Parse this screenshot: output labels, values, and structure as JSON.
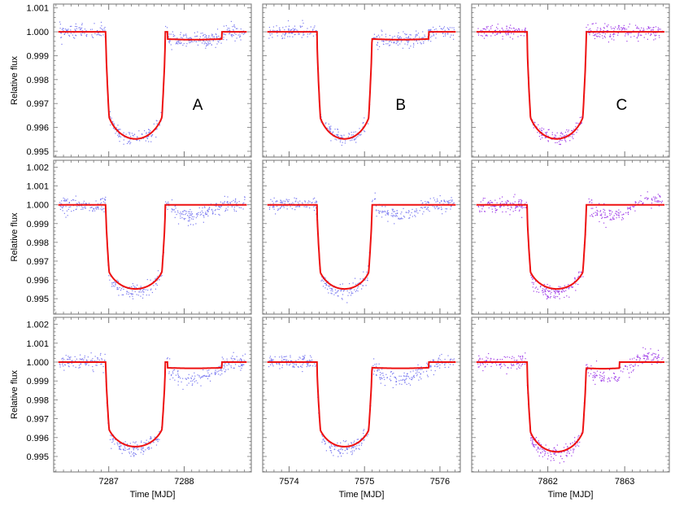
{
  "chart_data": {
    "type": "scatter",
    "grid": false,
    "ylabel": "Relative flux",
    "xlabel": "Time [MJD]",
    "colors": {
      "observed_blue": "#7b7bf0",
      "observed_purple": "#a040e8",
      "model": "#ee1111",
      "frame": "#888888"
    },
    "columns": [
      {
        "label": "A",
        "label_pos": [
          7288.18,
          0.99697
        ],
        "xlim": [
          7286.27,
          7288.89
        ],
        "xticks": [
          7287,
          7288
        ]
      },
      {
        "label": "B",
        "label_pos": [
          7575.48,
          0.99697
        ],
        "xlim": [
          7573.65,
          7576.27
        ],
        "xticks": [
          7574,
          7575,
          7576
        ]
      },
      {
        "label": "C",
        "label_pos": [
          7862.96,
          0.99697
        ],
        "xlim": [
          7861.01,
          7863.58
        ],
        "xticks": [
          7862,
          7863
        ]
      }
    ],
    "rows": [
      {
        "ylim": [
          0.99476,
          1.00116
        ],
        "yticks": [
          "1.001",
          "1.000",
          "0.999",
          "0.998",
          "0.997",
          "0.996",
          "0.995"
        ]
      },
      {
        "ylim": [
          0.99418,
          1.00237
        ],
        "yticks": [
          "1.002",
          "1.001",
          "1.000",
          "0.999",
          "0.998",
          "0.997",
          "0.996",
          "0.995"
        ]
      },
      {
        "ylim": [
          0.99418,
          1.00237
        ],
        "yticks": [
          "1.002",
          "1.001",
          "1.000",
          "0.999",
          "0.998",
          "0.997",
          "0.996",
          "0.995"
        ]
      }
    ],
    "panels": [
      {
        "row": 0,
        "col": 0,
        "color": "observed_blue",
        "model": {
          "t_ingress": 7286.96,
          "t_egress": 7287.75,
          "min_flux": 0.99552,
          "post_level": 0.9997,
          "post_end": 7288.5,
          "egress_bump": true
        }
      },
      {
        "row": 0,
        "col": 1,
        "color": "observed_blue",
        "model": {
          "t_ingress": 7574.37,
          "t_egress": 7575.1,
          "min_flux": 0.99552,
          "post_level": 0.9997,
          "post_end": 7575.85,
          "egress_bump": false
        }
      },
      {
        "row": 0,
        "col": 2,
        "color": "observed_purple",
        "model": {
          "t_ingress": 7861.73,
          "t_egress": 7862.5,
          "min_flux": 0.99552,
          "post_level": 1.0,
          "post_end": 7862.5,
          "egress_bump": false
        }
      },
      {
        "row": 1,
        "col": 0,
        "color": "observed_blue",
        "model": {
          "t_ingress": 7286.96,
          "t_egress": 7287.75,
          "min_flux": 0.99552,
          "post_level": 1.0,
          "post_end": 7287.75,
          "egress_bump": false
        }
      },
      {
        "row": 1,
        "col": 1,
        "color": "observed_blue",
        "model": {
          "t_ingress": 7574.37,
          "t_egress": 7575.1,
          "min_flux": 0.99552,
          "post_level": 1.0,
          "post_end": 7575.1,
          "egress_bump": false
        }
      },
      {
        "row": 1,
        "col": 2,
        "color": "observed_purple",
        "model": {
          "t_ingress": 7861.73,
          "t_egress": 7862.5,
          "min_flux": 0.99552,
          "post_level": 1.0,
          "post_end": 7862.5,
          "egress_bump": false
        }
      },
      {
        "row": 2,
        "col": 0,
        "color": "observed_blue",
        "model": {
          "t_ingress": 7286.96,
          "t_egress": 7287.75,
          "min_flux": 0.99552,
          "post_level": 0.9997,
          "post_end": 7288.5,
          "egress_bump": true
        }
      },
      {
        "row": 2,
        "col": 1,
        "color": "observed_blue",
        "model": {
          "t_ingress": 7574.37,
          "t_egress": 7575.1,
          "min_flux": 0.99552,
          "post_level": 0.9997,
          "post_end": 7575.85,
          "egress_bump": false
        }
      },
      {
        "row": 2,
        "col": 2,
        "color": "observed_purple",
        "model": {
          "t_ingress": 7861.73,
          "t_egress": 7862.5,
          "min_flux": 0.99525,
          "post_level": 0.99968,
          "post_end": 7862.93,
          "egress_bump": false
        }
      }
    ]
  }
}
